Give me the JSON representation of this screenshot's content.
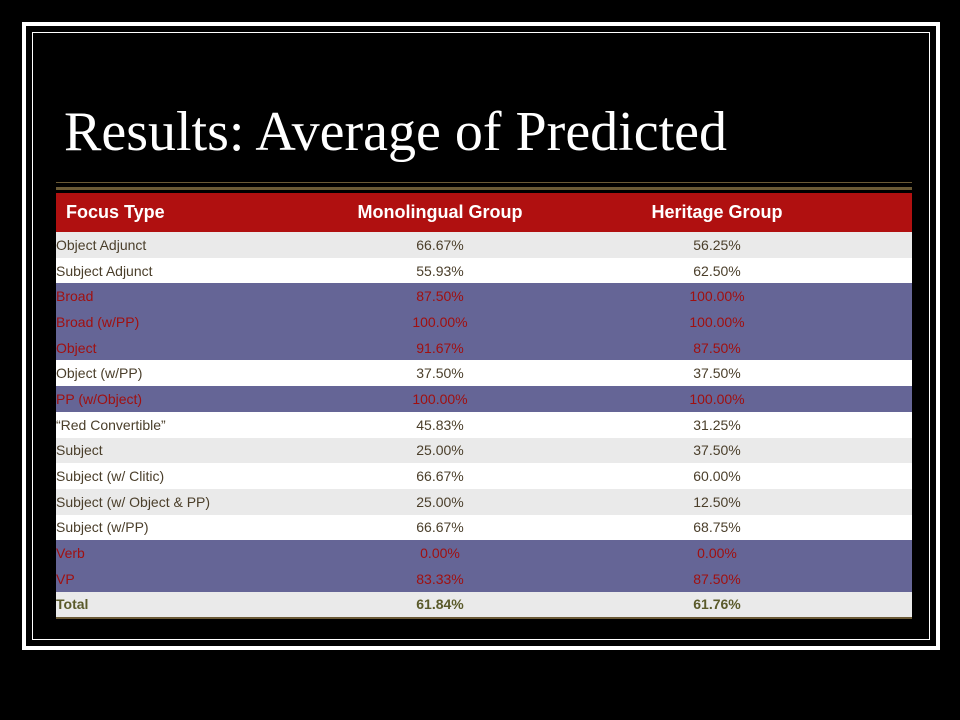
{
  "slide": {
    "title": "Results: Average of Predicted"
  },
  "table": {
    "headers": [
      "Focus Type",
      "Monolingual Group",
      "Heritage Group"
    ],
    "rows": [
      {
        "type": "Object Adjunct",
        "monolingual": "66.67%",
        "heritage": "56.25%",
        "style": "light"
      },
      {
        "type": "Subject Adjunct",
        "monolingual": "55.93%",
        "heritage": "62.50%",
        "style": "white"
      },
      {
        "type": "Broad",
        "monolingual": "87.50%",
        "heritage": "100.00%",
        "style": "purple"
      },
      {
        "type": "Broad (w/PP)",
        "monolingual": "100.00%",
        "heritage": "100.00%",
        "style": "purple"
      },
      {
        "type": "Object",
        "monolingual": "91.67%",
        "heritage": "87.50%",
        "style": "purple"
      },
      {
        "type": "Object (w/PP)",
        "monolingual": "37.50%",
        "heritage": "37.50%",
        "style": "white"
      },
      {
        "type": "PP (w/Object)",
        "monolingual": "100.00%",
        "heritage": "100.00%",
        "style": "purple"
      },
      {
        "type": "“Red Convertible”",
        "monolingual": "45.83%",
        "heritage": "31.25%",
        "style": "white"
      },
      {
        "type": "Subject",
        "monolingual": "25.00%",
        "heritage": "37.50%",
        "style": "light"
      },
      {
        "type": "Subject (w/ Clitic)",
        "monolingual": "66.67%",
        "heritage": "60.00%",
        "style": "white"
      },
      {
        "type": "Subject (w/ Object & PP)",
        "monolingual": "25.00%",
        "heritage": "12.50%",
        "style": "light"
      },
      {
        "type": "Subject (w/PP)",
        "monolingual": "66.67%",
        "heritage": "68.75%",
        "style": "white"
      },
      {
        "type": "Verb",
        "monolingual": "0.00%",
        "heritage": "0.00%",
        "style": "purple"
      },
      {
        "type": "VP",
        "monolingual": "83.33%",
        "heritage": "87.50%",
        "style": "purple"
      },
      {
        "type": "Total",
        "monolingual": "61.84%",
        "heritage": "61.76%",
        "style": "total"
      }
    ]
  },
  "colors": {
    "background": "#000000",
    "header": "#b01010",
    "highlight_row": "#656596",
    "highlight_text": "#a01010",
    "light_row": "#eaeaea",
    "rule": "#6b5a36"
  }
}
